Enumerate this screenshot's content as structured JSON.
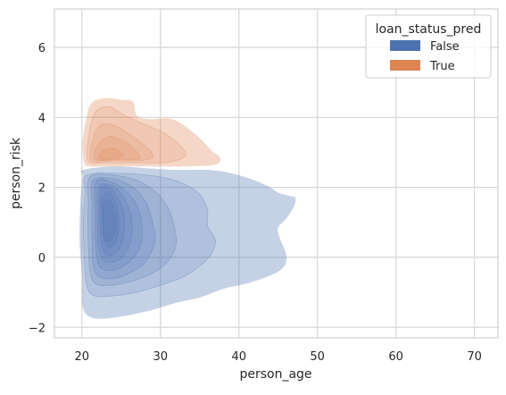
{
  "chart_data": {
    "type": "kde2d",
    "title": "",
    "xlabel": "person_age",
    "ylabel": "person_risk",
    "xlim": [
      16.5,
      73
    ],
    "ylim": [
      -2.3,
      7.1
    ],
    "xticks": [
      20,
      30,
      40,
      50,
      60,
      70
    ],
    "yticks": [
      -2,
      0,
      2,
      4,
      6
    ],
    "grid": true,
    "legend": {
      "title": "loan_status_pred",
      "placement": "top-right",
      "entries": [
        {
          "label": "False",
          "color": "#4c72b0"
        },
        {
          "label": "True",
          "color": "#dd8452"
        }
      ]
    },
    "series": [
      {
        "name": "False",
        "color": "#4c72b0",
        "density_levels": [
          {
            "level": 1,
            "points": [
              [
                20.2,
                2.5
              ],
              [
                24,
                2.6
              ],
              [
                28,
                2.55
              ],
              [
                32,
                2.5
              ],
              [
                36,
                2.5
              ],
              [
                38,
                2.45
              ],
              [
                40,
                2.35
              ],
              [
                42,
                2.2
              ],
              [
                44,
                2
              ],
              [
                45,
                1.85
              ],
              [
                46.5,
                1.75
              ],
              [
                47.2,
                1.7
              ],
              [
                47,
                1.45
              ],
              [
                46,
                1.1
              ],
              [
                45,
                0.85
              ],
              [
                45.2,
                0.55
              ],
              [
                46,
                0.1
              ],
              [
                45.8,
                -0.25
              ],
              [
                44.2,
                -0.5
              ],
              [
                41,
                -0.75
              ],
              [
                38,
                -0.9
              ],
              [
                35,
                -1.15
              ],
              [
                32,
                -1.3
              ],
              [
                29,
                -1.5
              ],
              [
                26,
                -1.65
              ],
              [
                23,
                -1.75
              ],
              [
                21,
                -1.7
              ],
              [
                20.1,
                -1.4
              ],
              [
                20,
                -0.5
              ],
              [
                19.7,
                0.5
              ],
              [
                19.8,
                1.5
              ],
              [
                20.1,
                2.3
              ]
            ]
          },
          {
            "level": 2,
            "points": [
              [
                20.6,
                2.35
              ],
              [
                25,
                2.4
              ],
              [
                30,
                2.3
              ],
              [
                33,
                2.1
              ],
              [
                35,
                1.8
              ],
              [
                36,
                1.35
              ],
              [
                36,
                0.9
              ],
              [
                37,
                0.5
              ],
              [
                36.5,
                0.1
              ],
              [
                35,
                -0.25
              ],
              [
                33,
                -0.55
              ],
              [
                30,
                -0.8
              ],
              [
                27,
                -1
              ],
              [
                24,
                -1.1
              ],
              [
                21.6,
                -1.1
              ],
              [
                20.6,
                -0.8
              ],
              [
                20.3,
                0
              ],
              [
                20.2,
                1
              ],
              [
                20.4,
                1.9
              ]
            ]
          },
          {
            "level": 3,
            "points": [
              [
                21,
                2.3
              ],
              [
                24,
                2.35
              ],
              [
                27,
                2.2
              ],
              [
                29.5,
                1.85
              ],
              [
                31,
                1.4
              ],
              [
                31.8,
                0.85
              ],
              [
                32,
                0.35
              ],
              [
                31,
                -0.1
              ],
              [
                29,
                -0.45
              ],
              [
                26,
                -0.7
              ],
              [
                23.5,
                -0.8
              ],
              [
                21.7,
                -0.75
              ],
              [
                21,
                -0.35
              ],
              [
                20.8,
                0.6
              ],
              [
                20.8,
                1.5
              ]
            ]
          },
          {
            "level": 4,
            "points": [
              [
                21.4,
                2.2
              ],
              [
                24,
                2.25
              ],
              [
                26.5,
                2
              ],
              [
                28.2,
                1.55
              ],
              [
                29,
                1
              ],
              [
                29.3,
                0.45
              ],
              [
                28.2,
                -0.1
              ],
              [
                26.5,
                -0.4
              ],
              [
                24.2,
                -0.6
              ],
              [
                22.2,
                -0.55
              ],
              [
                21.4,
                -0.2
              ],
              [
                21.3,
                0.7
              ],
              [
                21.3,
                1.5
              ]
            ]
          },
          {
            "level": 5,
            "points": [
              [
                21.8,
                2.15
              ],
              [
                23.8,
                2.15
              ],
              [
                25.8,
                1.85
              ],
              [
                27.2,
                1.4
              ],
              [
                27.7,
                0.85
              ],
              [
                27.4,
                0.3
              ],
              [
                26.2,
                -0.1
              ],
              [
                24.3,
                -0.35
              ],
              [
                22.4,
                -0.3
              ],
              [
                21.8,
                0.2
              ],
              [
                21.7,
                1.2
              ]
            ]
          },
          {
            "level": 6,
            "points": [
              [
                22.1,
                2
              ],
              [
                23.8,
                2.05
              ],
              [
                25.2,
                1.75
              ],
              [
                26.2,
                1.25
              ],
              [
                26.4,
                0.75
              ],
              [
                25.8,
                0.2
              ],
              [
                24.5,
                -0.1
              ],
              [
                22.9,
                -0.1
              ],
              [
                22.1,
                0.3
              ],
              [
                22,
                1.1
              ]
            ]
          },
          {
            "level": 7,
            "points": [
              [
                22.4,
                1.95
              ],
              [
                23.8,
                1.95
              ],
              [
                24.8,
                1.6
              ],
              [
                25.4,
                1.15
              ],
              [
                25.3,
                0.6
              ],
              [
                24.6,
                0.2
              ],
              [
                23.3,
                0.05
              ],
              [
                22.5,
                0.35
              ],
              [
                22.3,
                1.1
              ]
            ]
          },
          {
            "level": 8,
            "points": [
              [
                22.6,
                1.75
              ],
              [
                23.7,
                1.8
              ],
              [
                24.5,
                1.35
              ],
              [
                24.7,
                0.85
              ],
              [
                24.2,
                0.4
              ],
              [
                23.3,
                0.3
              ],
              [
                22.7,
                0.6
              ],
              [
                22.5,
                1.2
              ]
            ]
          },
          {
            "level": 9,
            "points": [
              [
                22.8,
                1.55
              ],
              [
                23.6,
                1.6
              ],
              [
                24.2,
                1.2
              ],
              [
                24.2,
                0.75
              ],
              [
                23.6,
                0.45
              ],
              [
                22.9,
                0.55
              ],
              [
                22.7,
                1.05
              ]
            ]
          }
        ]
      },
      {
        "name": "True",
        "color": "#dd8452",
        "density_levels": [
          {
            "level": 1,
            "points": [
              [
                20.3,
                2.7
              ],
              [
                20.1,
                3.3
              ],
              [
                20.5,
                3.9
              ],
              [
                21.2,
                4.4
              ],
              [
                23,
                4.55
              ],
              [
                25,
                4.5
              ],
              [
                26.5,
                4.45
              ],
              [
                27,
                4.05
              ],
              [
                28.5,
                3.95
              ],
              [
                31.5,
                3.95
              ],
              [
                34,
                3.6
              ],
              [
                35.5,
                3.3
              ],
              [
                36.5,
                3.05
              ],
              [
                37.6,
                2.85
              ],
              [
                37,
                2.65
              ],
              [
                33,
                2.6
              ],
              [
                28,
                2.6
              ],
              [
                24,
                2.6
              ],
              [
                21,
                2.6
              ]
            ]
          },
          {
            "level": 2,
            "points": [
              [
                20.8,
                2.75
              ],
              [
                20.9,
                3.5
              ],
              [
                21.7,
                4.15
              ],
              [
                23.5,
                4.3
              ],
              [
                25.5,
                4.05
              ],
              [
                28,
                3.8
              ],
              [
                30.5,
                3.55
              ],
              [
                32.5,
                3.2
              ],
              [
                33.2,
                2.9
              ],
              [
                31,
                2.72
              ],
              [
                27,
                2.7
              ],
              [
                23,
                2.7
              ]
            ]
          },
          {
            "level": 3,
            "points": [
              [
                21.2,
                2.78
              ],
              [
                21.5,
                3.45
              ],
              [
                22.5,
                3.8
              ],
              [
                24.3,
                3.75
              ],
              [
                26.5,
                3.45
              ],
              [
                28.5,
                3.1
              ],
              [
                29,
                2.85
              ],
              [
                27,
                2.76
              ],
              [
                24,
                2.76
              ]
            ]
          },
          {
            "level": 4,
            "points": [
              [
                21.8,
                2.8
              ],
              [
                22,
                3.2
              ],
              [
                23.5,
                3.45
              ],
              [
                25.5,
                3.3
              ],
              [
                27,
                3
              ],
              [
                27.3,
                2.82
              ],
              [
                25,
                2.8
              ]
            ]
          },
          {
            "level": 5,
            "points": [
              [
                22.2,
                2.82
              ],
              [
                22.8,
                3.05
              ],
              [
                24.2,
                3.1
              ],
              [
                25.3,
                2.92
              ],
              [
                24,
                2.82
              ]
            ]
          }
        ]
      }
    ]
  }
}
